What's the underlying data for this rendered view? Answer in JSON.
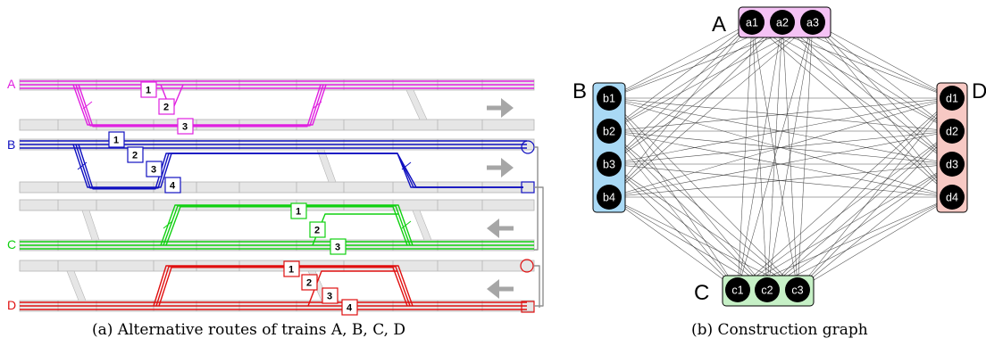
{
  "captions": {
    "left": "(a) Alternative routes of trains A, B, C, D",
    "right": "(b) Construction graph"
  },
  "trains": [
    {
      "name": "A",
      "color": "#e020e0",
      "routes": [
        "1",
        "2",
        "3"
      ]
    },
    {
      "name": "B",
      "color": "#1010c0",
      "routes": [
        "1",
        "2",
        "3",
        "4"
      ]
    },
    {
      "name": "C",
      "color": "#10d010",
      "routes": [
        "1",
        "2",
        "3"
      ]
    },
    {
      "name": "D",
      "color": "#e01010",
      "routes": [
        "1",
        "2",
        "3",
        "4"
      ]
    }
  ],
  "graph": {
    "groups": [
      {
        "name": "A",
        "fill": "#f4c2f4",
        "nodes": [
          "a1",
          "a2",
          "a3"
        ]
      },
      {
        "name": "B",
        "fill": "#a9d9f5",
        "nodes": [
          "b1",
          "b2",
          "b3",
          "b4"
        ]
      },
      {
        "name": "C",
        "fill": "#c6f0c6",
        "nodes": [
          "c1",
          "c2",
          "c3"
        ]
      },
      {
        "name": "D",
        "fill": "#f7c9c4",
        "nodes": [
          "d1",
          "d2",
          "d3",
          "d4"
        ]
      }
    ],
    "edge_rule": "complete multipartite (every node linked to every node of other groups)"
  },
  "colors": {
    "track": "#e6e6e6",
    "track_edge": "#b5b5b5",
    "arrow": "#a6a6a6",
    "node": "#000000",
    "edge": "#303030"
  }
}
